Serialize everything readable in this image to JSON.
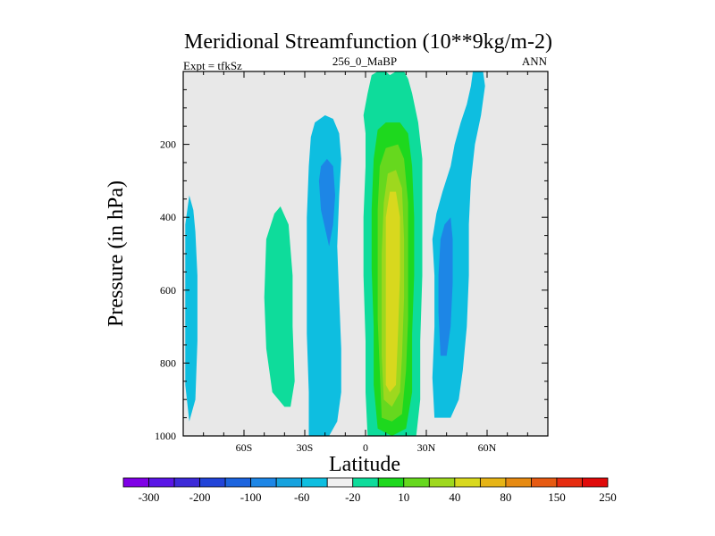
{
  "chart_data": {
    "type": "contour",
    "title": "Meridional Streamfunction (10**9kg/m-2)",
    "left_label": "Expt = tfkSz",
    "center_label": "256_0_MaBP",
    "right_label": "ANN",
    "xlabel": "Latitude",
    "ylabel": "Pressure (in hPa)",
    "xlim": [
      -90,
      90
    ],
    "ylim": [
      0,
      1000
    ],
    "y_inverted": true,
    "x_ticks": [
      {
        "value": -60,
        "label": "60S"
      },
      {
        "value": -30,
        "label": "30S"
      },
      {
        "value": 0,
        "label": "0"
      },
      {
        "value": 30,
        "label": "30N"
      },
      {
        "value": 60,
        "label": "60N"
      }
    ],
    "y_ticks": [
      {
        "value": 200,
        "label": "200"
      },
      {
        "value": 400,
        "label": "400"
      },
      {
        "value": 600,
        "label": "600"
      },
      {
        "value": 800,
        "label": "800"
      },
      {
        "value": 1000,
        "label": "1000"
      }
    ],
    "background_color": "#e8e8e8",
    "colorbar": {
      "colors": [
        "#7f00e6",
        "#5a16e6",
        "#3d2ad8",
        "#2244d8",
        "#1c64de",
        "#1d86e6",
        "#16a2de",
        "#0ebee0",
        "#f0f0f0",
        "#0edc9b",
        "#1ed81e",
        "#66d81e",
        "#9ed81e",
        "#d8d81e",
        "#e6b416",
        "#e68a12",
        "#e65a12",
        "#e62c10",
        "#e00a0a"
      ],
      "labels": [
        "-300",
        "-200",
        "-100",
        "-60",
        "-20",
        "10",
        "40",
        "80",
        "150",
        "250"
      ]
    },
    "regions": [
      {
        "name": "southern-blue-cell",
        "level": -20,
        "color": "#0ebee0",
        "outline": [
          [
            -87,
            960
          ],
          [
            -84,
            900
          ],
          [
            -83,
            740
          ],
          [
            -83,
            560
          ],
          [
            -84,
            440
          ],
          [
            -85,
            380
          ],
          [
            -87,
            340
          ],
          [
            -89,
            420
          ],
          [
            -89,
            640
          ],
          [
            -89,
            860
          ]
        ]
      },
      {
        "name": "southern-green-cell",
        "level": 10,
        "color": "#0edc9b",
        "outline": [
          [
            -40,
            920
          ],
          [
            -46,
            880
          ],
          [
            -49,
            760
          ],
          [
            -50,
            620
          ],
          [
            -49,
            460
          ],
          [
            -45,
            390
          ],
          [
            -42,
            370
          ],
          [
            -38,
            420
          ],
          [
            -36,
            560
          ],
          [
            -36,
            700
          ],
          [
            -35,
            850
          ],
          [
            -37,
            920
          ]
        ]
      },
      {
        "name": "southern-ferrel-outer",
        "level": -20,
        "color": "#0ebee0",
        "outline": [
          [
            -28,
            1000
          ],
          [
            -28,
            880
          ],
          [
            -29,
            720
          ],
          [
            -29,
            560
          ],
          [
            -29,
            400
          ],
          [
            -28,
            260
          ],
          [
            -27,
            180
          ],
          [
            -25,
            140
          ],
          [
            -20,
            120
          ],
          [
            -16,
            130
          ],
          [
            -13,
            170
          ],
          [
            -12,
            240
          ],
          [
            -13,
            340
          ],
          [
            -14,
            480
          ],
          [
            -13,
            620
          ],
          [
            -12,
            760
          ],
          [
            -12,
            880
          ],
          [
            -14,
            960
          ],
          [
            -18,
            1000
          ],
          [
            -24,
            1000
          ]
        ]
      },
      {
        "name": "southern-ferrel-inner",
        "level": -60,
        "color": "#1d86e6",
        "outline": [
          [
            -18,
            480
          ],
          [
            -22,
            380
          ],
          [
            -23,
            300
          ],
          [
            -22,
            260
          ],
          [
            -19,
            240
          ],
          [
            -16,
            260
          ],
          [
            -15,
            340
          ],
          [
            -16,
            420
          ]
        ]
      },
      {
        "name": "hadley-outer",
        "level": 10,
        "color": "#0edc9b",
        "outline": [
          [
            1,
            1000
          ],
          [
            0,
            880
          ],
          [
            0,
            740
          ],
          [
            -1,
            560
          ],
          [
            -1,
            400
          ],
          [
            0,
            260
          ],
          [
            0,
            170
          ],
          [
            -1,
            120
          ],
          [
            1,
            60
          ],
          [
            3,
            10
          ],
          [
            6,
            0
          ],
          [
            10,
            0
          ],
          [
            12,
            10
          ],
          [
            15,
            0
          ],
          [
            19,
            0
          ],
          [
            21,
            20
          ],
          [
            23,
            60
          ],
          [
            26,
            140
          ],
          [
            28,
            240
          ],
          [
            28,
            380
          ],
          [
            28,
            560
          ],
          [
            27,
            740
          ],
          [
            27,
            900
          ],
          [
            25,
            1000
          ]
        ]
      },
      {
        "name": "hadley-40",
        "level": 40,
        "color": "#1ed81e",
        "outline": [
          [
            6,
            980
          ],
          [
            4,
            860
          ],
          [
            4,
            700
          ],
          [
            3,
            540
          ],
          [
            3,
            380
          ],
          [
            4,
            240
          ],
          [
            6,
            160
          ],
          [
            10,
            140
          ],
          [
            17,
            140
          ],
          [
            21,
            170
          ],
          [
            23,
            260
          ],
          [
            24,
            400
          ],
          [
            24,
            560
          ],
          [
            23,
            720
          ],
          [
            23,
            880
          ],
          [
            20,
            980
          ],
          [
            13,
            1000
          ]
        ]
      },
      {
        "name": "hadley-80",
        "level": 80,
        "color": "#66d81e",
        "outline": [
          [
            8,
            950
          ],
          [
            7,
            820
          ],
          [
            6,
            680
          ],
          [
            6,
            520
          ],
          [
            6,
            380
          ],
          [
            7,
            260
          ],
          [
            10,
            210
          ],
          [
            16,
            200
          ],
          [
            19,
            240
          ],
          [
            21,
            360
          ],
          [
            21,
            520
          ],
          [
            21,
            680
          ],
          [
            20,
            820
          ],
          [
            18,
            940
          ],
          [
            13,
            960
          ]
        ]
      },
      {
        "name": "hadley-150",
        "level": 150,
        "color": "#9ed81e",
        "outline": [
          [
            9,
            900
          ],
          [
            8,
            780
          ],
          [
            8,
            640
          ],
          [
            8,
            500
          ],
          [
            9,
            360
          ],
          [
            11,
            280
          ],
          [
            15,
            270
          ],
          [
            18,
            320
          ],
          [
            19,
            460
          ],
          [
            19,
            620
          ],
          [
            18,
            780
          ],
          [
            17,
            880
          ],
          [
            13,
            920
          ]
        ]
      },
      {
        "name": "hadley-core",
        "level": 250,
        "color": "#d8d81e",
        "outline": [
          [
            10,
            860
          ],
          [
            10,
            720
          ],
          [
            10,
            560
          ],
          [
            10,
            400
          ],
          [
            12,
            330
          ],
          [
            15,
            330
          ],
          [
            17,
            400
          ],
          [
            17,
            560
          ],
          [
            16,
            720
          ],
          [
            15,
            860
          ],
          [
            12,
            880
          ]
        ]
      },
      {
        "name": "northern-ferrel-outer",
        "level": -20,
        "color": "#0ebee0",
        "outline": [
          [
            34,
            950
          ],
          [
            33,
            840
          ],
          [
            34,
            700
          ],
          [
            34,
            560
          ],
          [
            33,
            460
          ],
          [
            35,
            390
          ],
          [
            38,
            330
          ],
          [
            42,
            260
          ],
          [
            44,
            200
          ],
          [
            47,
            140
          ],
          [
            50,
            90
          ],
          [
            52,
            40
          ],
          [
            53,
            0
          ],
          [
            58,
            0
          ],
          [
            59,
            40
          ],
          [
            57,
            120
          ],
          [
            54,
            200
          ],
          [
            52,
            300
          ],
          [
            51,
            420
          ],
          [
            51,
            560
          ],
          [
            50,
            700
          ],
          [
            48,
            820
          ],
          [
            46,
            900
          ],
          [
            42,
            950
          ]
        ]
      },
      {
        "name": "northern-ferrel-inner",
        "level": -60,
        "color": "#1d86e6",
        "outline": [
          [
            37,
            780
          ],
          [
            36,
            660
          ],
          [
            36,
            560
          ],
          [
            37,
            460
          ],
          [
            39,
            420
          ],
          [
            42,
            400
          ],
          [
            43,
            460
          ],
          [
            43,
            580
          ],
          [
            42,
            700
          ],
          [
            40,
            780
          ]
        ]
      }
    ]
  }
}
